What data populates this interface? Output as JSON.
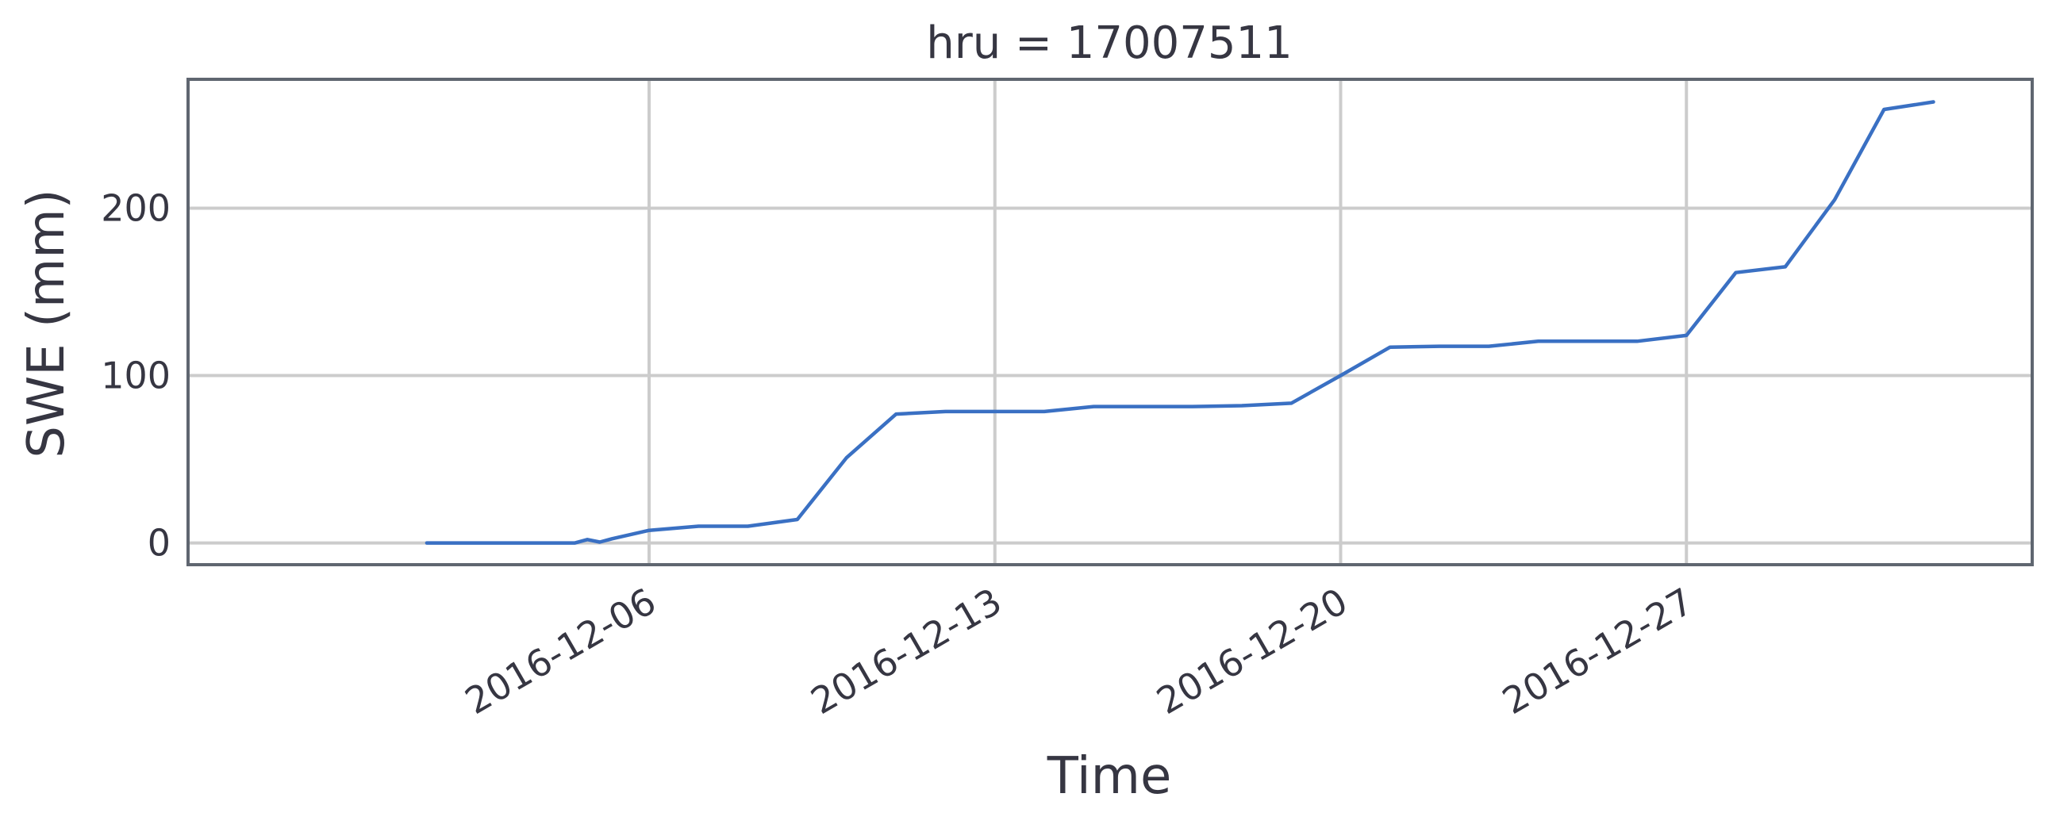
{
  "chart_data": {
    "type": "line",
    "title": "hru = 17007511",
    "xlabel": "Time",
    "ylabel": "SWE (mm)",
    "xlim": [
      "2016-11-26T16:00",
      "2017-01-03T00:00"
    ],
    "ylim": [
      -13,
      277
    ],
    "x_ticks": [
      "2016-12-06",
      "2016-12-13",
      "2016-12-20",
      "2016-12-27"
    ],
    "y_ticks": [
      0,
      100,
      200
    ],
    "grid": true,
    "legend": "none",
    "series": [
      {
        "color": "#3a70c3",
        "points": [
          [
            "2016-12-01T12:00",
            0
          ],
          [
            "2016-12-02T12:00",
            0
          ],
          [
            "2016-12-03T12:00",
            0
          ],
          [
            "2016-12-04T12:00",
            0
          ],
          [
            "2016-12-04T18:00",
            2
          ],
          [
            "2016-12-05T00:00",
            0.5
          ],
          [
            "2016-12-05T06:00",
            2.5
          ],
          [
            "2016-12-06T00:00",
            7.5
          ],
          [
            "2016-12-07T00:00",
            10
          ],
          [
            "2016-12-08T00:00",
            10
          ],
          [
            "2016-12-09T00:00",
            14
          ],
          [
            "2016-12-10T00:00",
            51
          ],
          [
            "2016-12-11T00:00",
            77
          ],
          [
            "2016-12-12T00:00",
            78.5
          ],
          [
            "2016-12-13T00:00",
            78.5
          ],
          [
            "2016-12-14T00:00",
            78.5
          ],
          [
            "2016-12-15T00:00",
            81.5
          ],
          [
            "2016-12-16T00:00",
            81.5
          ],
          [
            "2016-12-17T00:00",
            81.5
          ],
          [
            "2016-12-18T00:00",
            82
          ],
          [
            "2016-12-19T00:00",
            83.5
          ],
          [
            "2016-12-20T00:00",
            100
          ],
          [
            "2016-12-21T00:00",
            117
          ],
          [
            "2016-12-22T00:00",
            117.5
          ],
          [
            "2016-12-23T00:00",
            117.5
          ],
          [
            "2016-12-24T00:00",
            120.5
          ],
          [
            "2016-12-25T00:00",
            120.5
          ],
          [
            "2016-12-26T00:00",
            120.5
          ],
          [
            "2016-12-27T00:00",
            124
          ],
          [
            "2016-12-28T00:00",
            161.5
          ],
          [
            "2016-12-29T00:00",
            165
          ],
          [
            "2016-12-30T00:00",
            205
          ],
          [
            "2016-12-31T00:00",
            259
          ],
          [
            "2017-01-01T00:00",
            263.5
          ]
        ]
      }
    ]
  }
}
